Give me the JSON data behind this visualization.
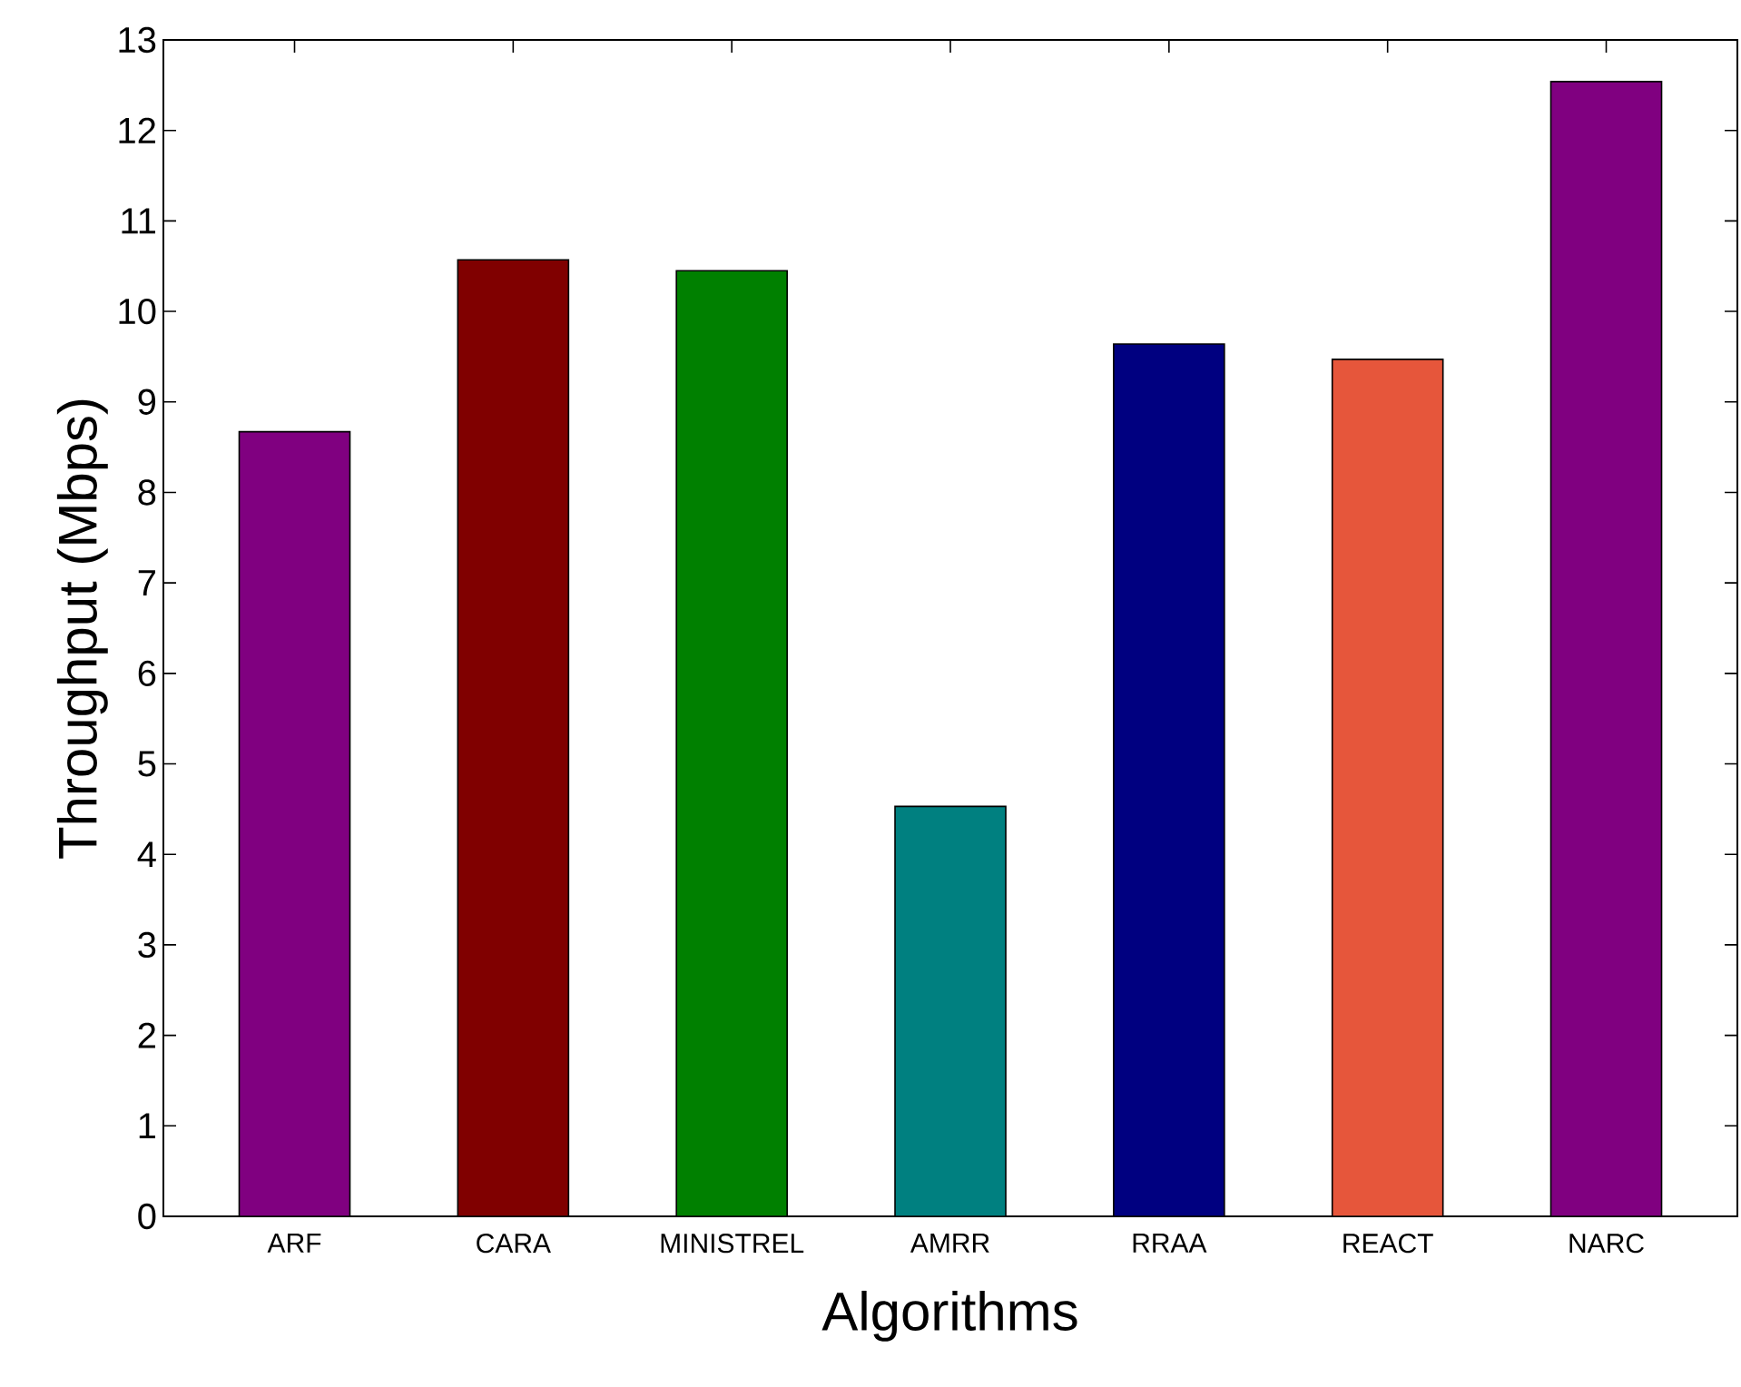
{
  "chart_data": {
    "type": "bar",
    "xlabel": "Algorithms",
    "ylabel": "Throughput (Mbps)",
    "categories": [
      "ARF",
      "CARA",
      "MINISTREL",
      "AMRR",
      "RRAA",
      "REACT",
      "NARC"
    ],
    "values": [
      8.67,
      10.57,
      10.45,
      4.53,
      9.64,
      9.47,
      12.54
    ],
    "colors": [
      "#800080",
      "#800000",
      "#008000",
      "#008080",
      "#000080",
      "#e6563b",
      "#800080"
    ],
    "ylim": [
      0,
      13
    ],
    "yticks": [
      0,
      1,
      2,
      3,
      4,
      5,
      6,
      7,
      8,
      9,
      10,
      11,
      12,
      13
    ]
  }
}
